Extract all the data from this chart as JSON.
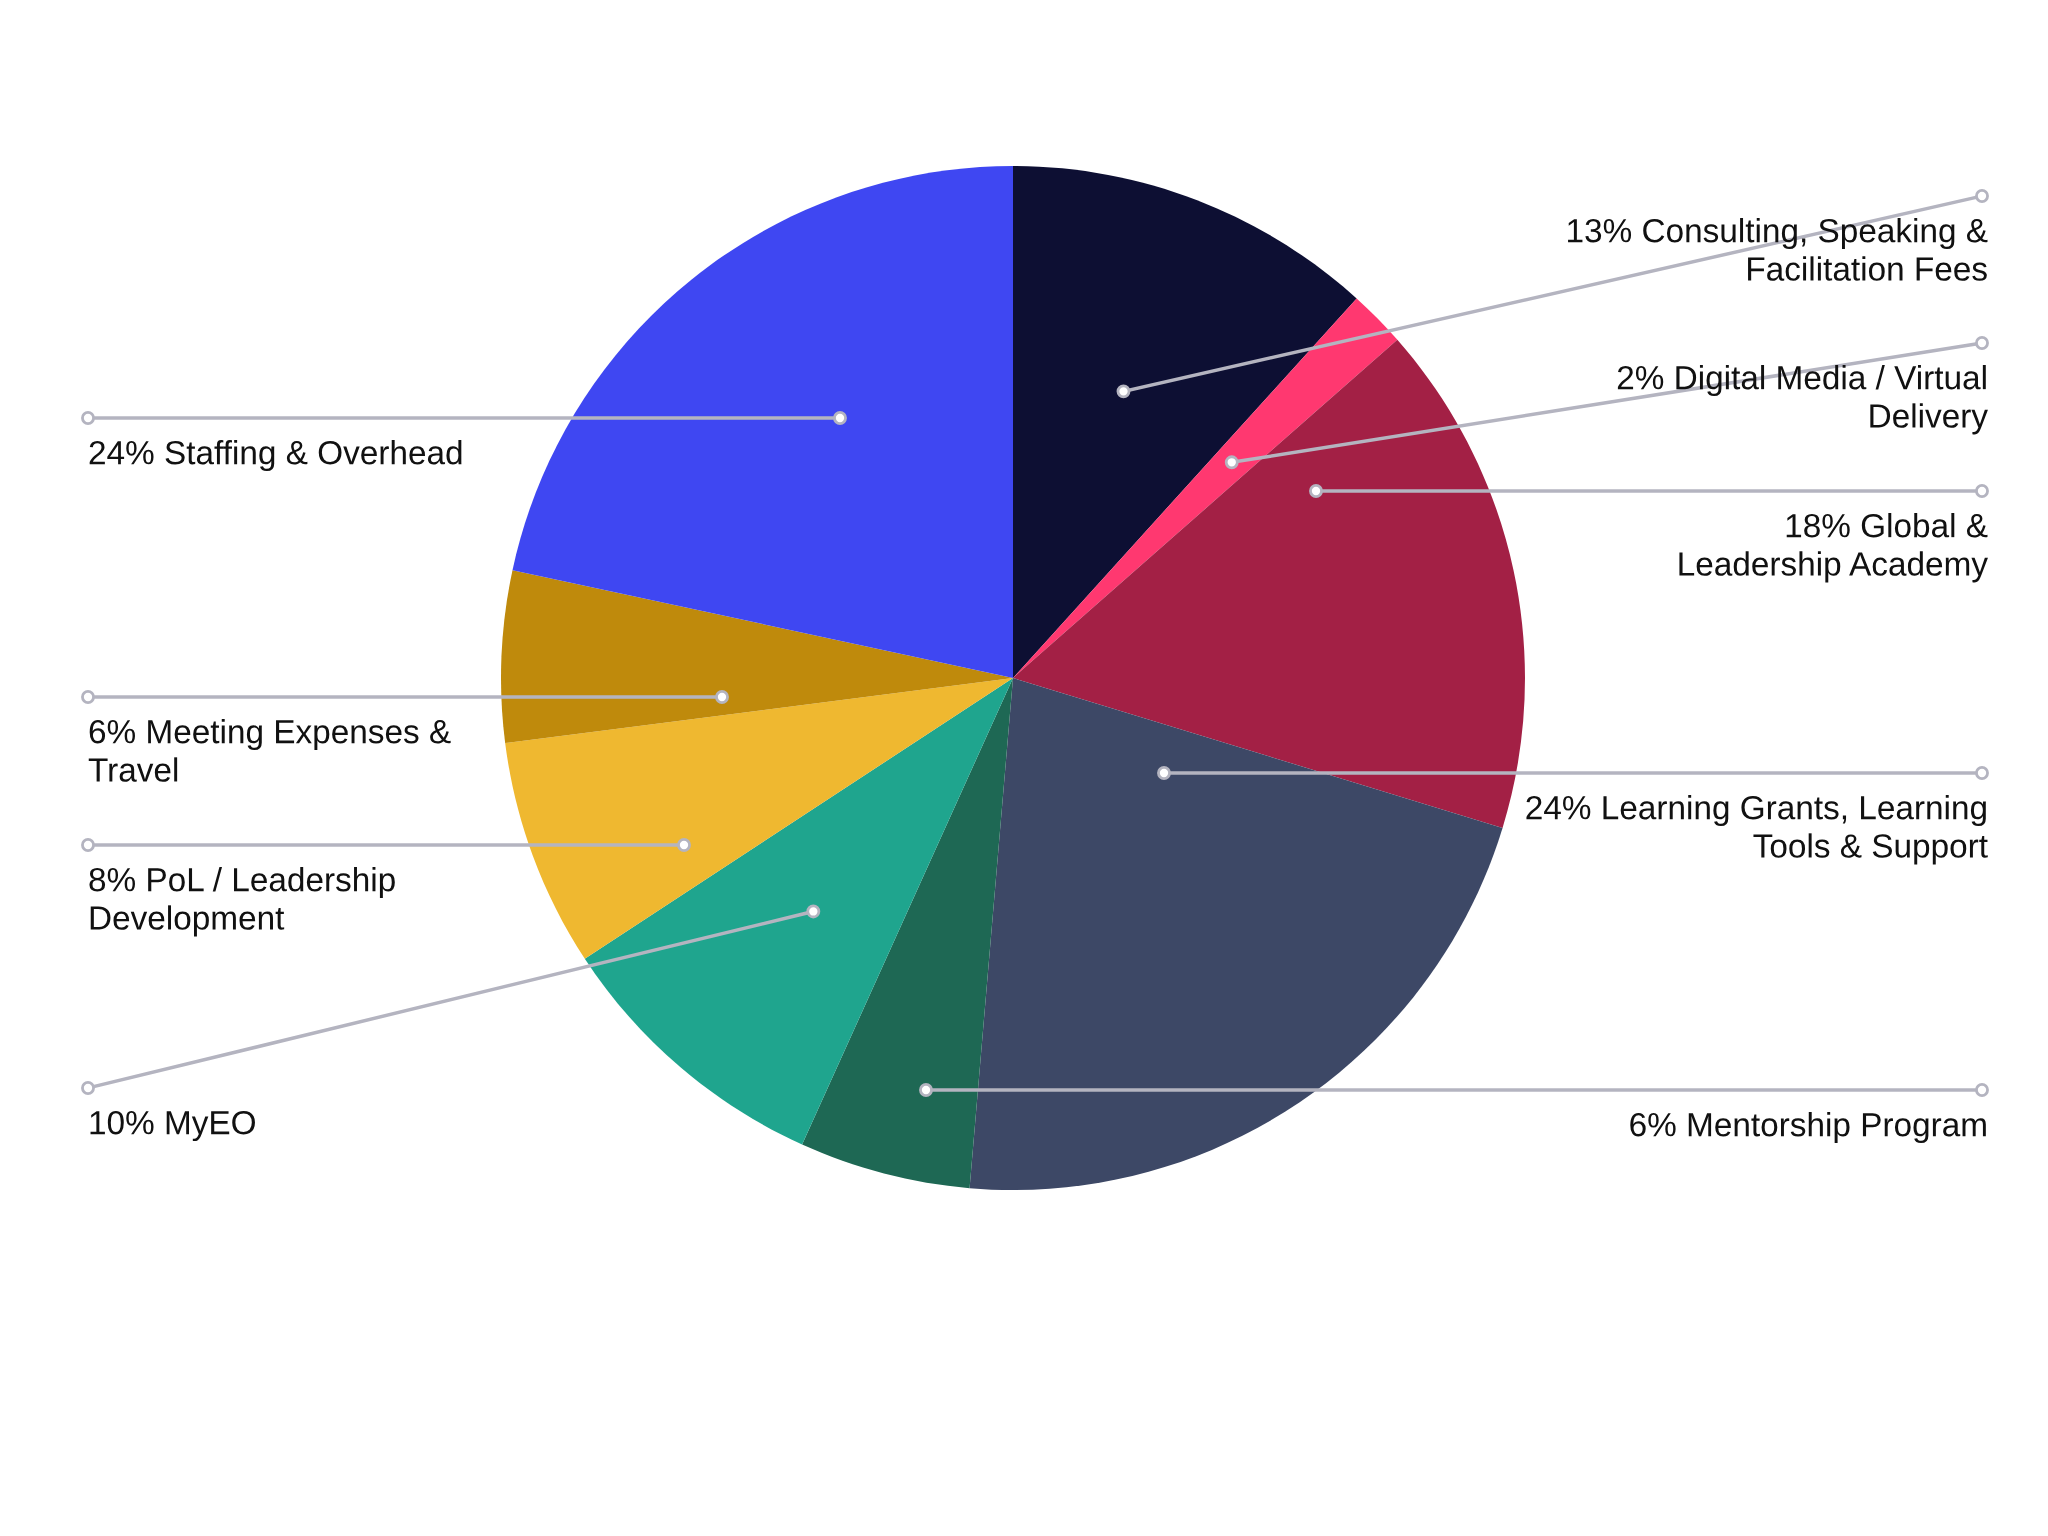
{
  "chart_data": {
    "type": "pie",
    "categories": [
      "Consulting, Speaking &\nFacilitation Fees",
      "Digital Media / Virtual\nDelivery",
      "Global &\nLeadership Academy",
      "Learning Grants, Learning\nTools & Support",
      "Mentorship Program",
      "MyEO",
      "PoL / Leadership\nDevelopment",
      "Meeting Expenses &\nTravel",
      "Staffing & Overhead"
    ],
    "values": [
      13,
      2,
      18,
      24,
      6,
      10,
      8,
      6,
      24
    ],
    "value_labels": [
      "13%",
      "2%",
      "18%",
      "24%",
      "6%",
      "10%",
      "8%",
      "6%",
      "24%"
    ],
    "colors": [
      "#0d0f33",
      "#ff3870",
      "#a32045",
      "#3d4866",
      "#1e6854",
      "#1fa58e",
      "#efb830",
      "#bf8a0c",
      "#3f47f2"
    ],
    "legend": false
  }
}
